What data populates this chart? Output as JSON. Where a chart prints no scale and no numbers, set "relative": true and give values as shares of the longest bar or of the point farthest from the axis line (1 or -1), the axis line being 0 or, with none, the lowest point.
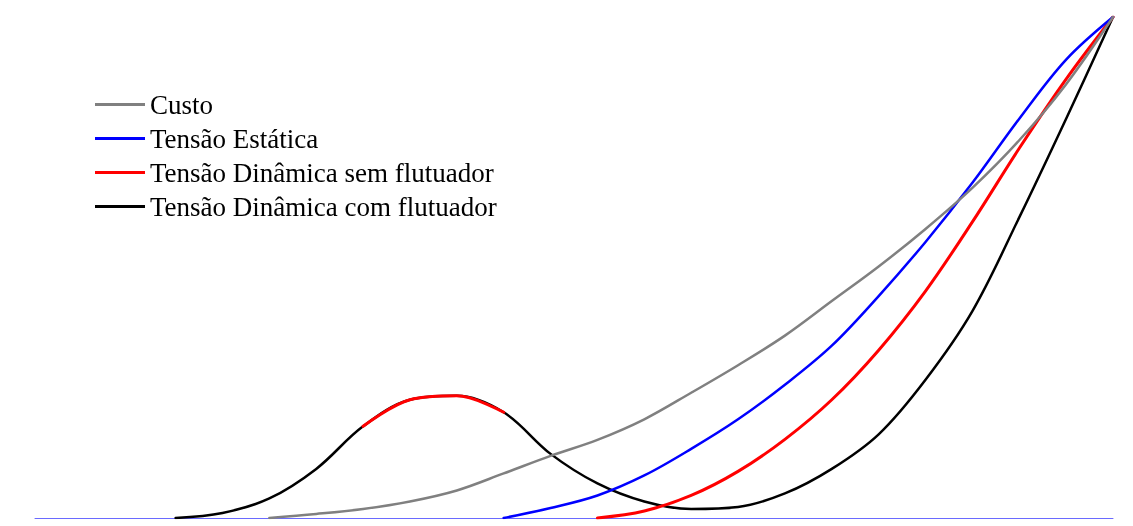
{
  "chart_data": {
    "type": "line",
    "relative": true,
    "categories": [
      null,
      null,
      null,
      null,
      null,
      null,
      null,
      null,
      null,
      null,
      null,
      null,
      null,
      null,
      null,
      null,
      null,
      null,
      null,
      null,
      null,
      null,
      null,
      null
    ],
    "series": [
      {
        "name": "Custo",
        "color": "#808080",
        "values": [
          null,
          null,
          null,
          null,
          null,
          0,
          0.008,
          0.018,
          0.033,
          0.055,
          0.089,
          0.124,
          0.156,
          0.197,
          0.25,
          0.305,
          0.364,
          0.433,
          0.502,
          0.577,
          0.659,
          0.754,
          0.866,
          1
        ]
      },
      {
        "name": "Tensão Estática",
        "color": "#0000ff",
        "values": [
          null,
          null,
          null,
          null,
          null,
          null,
          null,
          null,
          null,
          null,
          0,
          0.02,
          0.045,
          0.085,
          0.138,
          0.197,
          0.266,
          0.344,
          0.443,
          0.551,
          0.669,
          0.797,
          0.915,
          1
        ]
      },
      {
        "name": "Tensão Dinâmica sem flutuador",
        "color": "#ff0000",
        "values": [
          null,
          null,
          null,
          null,
          null,
          null,
          null,
          0.183,
          0.236,
          0.244,
          0.211,
          null,
          0,
          0.014,
          0.045,
          0.093,
          0.157,
          0.236,
          0.335,
          0.453,
          0.591,
          0.738,
          0.876,
          1
        ]
      },
      {
        "name": "Tensão Dinâmica com flutuador",
        "color": "#000000",
        "values": [
          null,
          null,
          null,
          0,
          0.01,
          0.039,
          0.098,
          0.183,
          0.236,
          0.244,
          0.211,
          0.128,
          0.069,
          0.033,
          0.018,
          0.022,
          0.049,
          0.098,
          0.167,
          0.276,
          0.413,
          0.6,
          0.797,
          1
        ]
      }
    ],
    "legend": "top left",
    "marker": "none",
    "line_style": "solid",
    "grid": false
  }
}
